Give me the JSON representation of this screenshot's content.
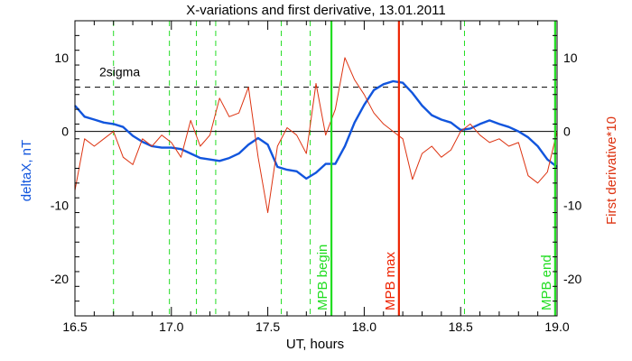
{
  "chart_data": {
    "type": "line",
    "title": "X-variations and first derivative, 13.01.2011",
    "xlabel": "UT, hours",
    "ylabel_left": "deltaX, nT",
    "ylabel_right": "First derivative*10",
    "xlim": [
      16.5,
      19.0
    ],
    "ylim": [
      -25,
      15
    ],
    "x_ticks": [
      "16.5",
      "17.0",
      "17.5",
      "18.0",
      "18.5",
      "19.0"
    ],
    "y_ticks_left": [
      "10",
      "0",
      "-10",
      "-20"
    ],
    "y_ticks_right": [
      "10",
      "0",
      "-10",
      "-20"
    ],
    "grid": false,
    "threshold": {
      "label": "2sigma",
      "y": 6,
      "style": "dashed",
      "color": "#000000"
    },
    "zero_line": {
      "y": 0,
      "color": "#000000"
    },
    "green_dashed_x": [
      16.7,
      16.99,
      17.13,
      17.23,
      17.57,
      17.72,
      18.52
    ],
    "markers": [
      {
        "label": "MPB begin",
        "x": 17.83,
        "color": "#22dd22"
      },
      {
        "label": "MPB max",
        "x": 18.18,
        "color": "#ee2200"
      },
      {
        "label": "MPB end",
        "x": 18.99,
        "color": "#22dd22"
      }
    ],
    "series": [
      {
        "color": "#1155dd",
        "x": [
          16.5,
          16.55,
          16.6,
          16.65,
          16.7,
          16.75,
          16.8,
          16.85,
          16.9,
          16.95,
          17.0,
          17.05,
          17.1,
          17.15,
          17.2,
          17.25,
          17.3,
          17.35,
          17.4,
          17.45,
          17.5,
          17.55,
          17.6,
          17.65,
          17.7,
          17.75,
          17.8,
          17.85,
          17.9,
          17.95,
          18.0,
          18.05,
          18.1,
          18.15,
          18.2,
          18.25,
          18.3,
          18.35,
          18.4,
          18.45,
          18.5,
          18.55,
          18.6,
          18.65,
          18.7,
          18.75,
          18.8,
          18.85,
          18.9,
          18.95,
          19.0
        ],
        "y": [
          3.5,
          2.0,
          1.6,
          1.2,
          1.0,
          0.6,
          -0.6,
          -1.4,
          -2.0,
          -2.2,
          -2.2,
          -2.4,
          -3.0,
          -3.6,
          -3.8,
          -4.0,
          -3.6,
          -3.0,
          -1.8,
          -0.9,
          -1.8,
          -4.8,
          -5.2,
          -5.4,
          -6.4,
          -5.6,
          -4.4,
          -4.4,
          -2.0,
          1.2,
          3.6,
          5.6,
          6.4,
          6.8,
          6.6,
          5.2,
          3.5,
          2.2,
          1.6,
          1.2,
          0.2,
          0.4,
          1.0,
          1.5,
          1.0,
          0.6,
          0.0,
          -0.8,
          -2.0,
          -3.8,
          -4.8
        ]
      },
      {
        "color": "#dd3311",
        "x": [
          16.5,
          16.55,
          16.6,
          16.65,
          16.7,
          16.75,
          16.8,
          16.85,
          16.9,
          16.95,
          17.0,
          17.05,
          17.1,
          17.15,
          17.2,
          17.25,
          17.3,
          17.35,
          17.4,
          17.45,
          17.5,
          17.55,
          17.6,
          17.65,
          17.7,
          17.75,
          17.8,
          17.85,
          17.9,
          17.95,
          18.0,
          18.05,
          18.1,
          18.15,
          18.2,
          18.25,
          18.3,
          18.35,
          18.4,
          18.45,
          18.5,
          18.55,
          18.6,
          18.65,
          18.7,
          18.75,
          18.8,
          18.85,
          18.9,
          18.95,
          19.0
        ],
        "y": [
          -8.0,
          -1.0,
          -2.0,
          -1.0,
          0.0,
          -3.5,
          -4.5,
          -1.0,
          -2.0,
          -0.5,
          -1.5,
          -3.5,
          1.5,
          -2.0,
          -0.5,
          4.5,
          2.0,
          2.5,
          6.0,
          -3.5,
          -11.0,
          -2.0,
          0.5,
          -0.5,
          -3.0,
          6.5,
          -0.5,
          3.0,
          10.0,
          7.0,
          5.0,
          2.5,
          1.0,
          0.0,
          -1.0,
          -6.5,
          -3.0,
          -2.0,
          -3.5,
          -2.5,
          0.0,
          1.0,
          -0.5,
          -1.5,
          -1.0,
          -2.0,
          -1.5,
          -6.0,
          -7.0,
          -5.5,
          0.0
        ]
      }
    ]
  }
}
